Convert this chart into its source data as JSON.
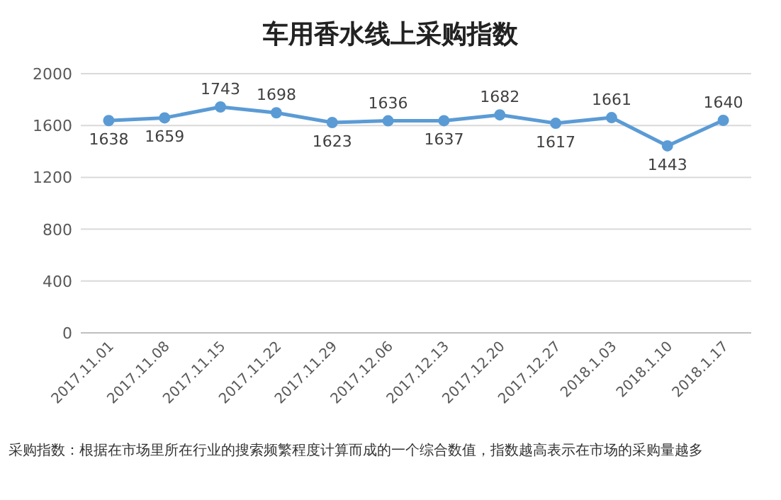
{
  "chart_data": {
    "type": "line",
    "title": "车用香水线上采购指数",
    "categories": [
      "2017.11.01",
      "2017.11.08",
      "2017.11.15",
      "2017.11.22",
      "2017.11.29",
      "2017.12.06",
      "2017.12.13",
      "2017.12.20",
      "2017.12.27",
      "2018.1.03",
      "2018.1.10",
      "2018.1.17"
    ],
    "series": [
      {
        "color": "#5b9bd5",
        "values": [
          1638,
          1659,
          1743,
          1698,
          1623,
          1636,
          1637,
          1682,
          1617,
          1661,
          1443,
          1640
        ]
      }
    ],
    "ylim": [
      0,
      2000
    ],
    "yticks": [
      0,
      400,
      800,
      1200,
      1600,
      2000
    ],
    "grid": "y",
    "marker": "circle",
    "line_style": "solid",
    "data_labels": true,
    "annotations": [
      "采购指数：根据在市场里所在行业的搜索频繁程度计算而成的一个综合数值，指数越高表示在市场的采购量越多"
    ]
  }
}
